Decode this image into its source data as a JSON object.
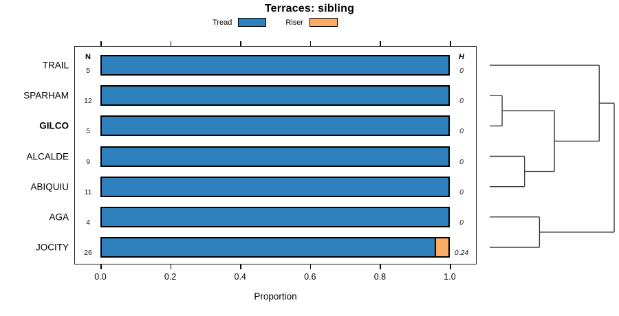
{
  "chart_data": {
    "type": "bar",
    "orientation": "horizontal_stacked",
    "title": "Terraces: sibling",
    "xlabel": "Proportion",
    "xlim": [
      0,
      1
    ],
    "xtick_values": [
      0.0,
      0.2,
      0.4,
      0.6,
      0.8,
      1.0
    ],
    "xtick_labels": [
      "0.0",
      "0.2",
      "0.4",
      "0.6",
      "0.8",
      "1.0"
    ],
    "grid": false,
    "legend_position": "top-center",
    "n_column_header": "N",
    "h_column_header": "H",
    "legend": [
      {
        "label": "Tread",
        "color": "#2E81BC"
      },
      {
        "label": "Riser",
        "color": "#FBAD63"
      }
    ],
    "series_names": [
      "Tread",
      "Riser"
    ],
    "rows": [
      {
        "label": "TRAIL",
        "bold": false,
        "n": "5",
        "h": "0",
        "tread": 1.0,
        "riser": 0.0
      },
      {
        "label": "SPARHAM",
        "bold": false,
        "n": "12",
        "h": "0",
        "tread": 1.0,
        "riser": 0.0
      },
      {
        "label": "GILCO",
        "bold": true,
        "n": "5",
        "h": "0",
        "tread": 1.0,
        "riser": 0.0
      },
      {
        "label": "ALCALDE",
        "bold": false,
        "n": "9",
        "h": "0",
        "tread": 1.0,
        "riser": 0.0
      },
      {
        "label": "ABIQUIU",
        "bold": false,
        "n": "11",
        "h": "0",
        "tread": 1.0,
        "riser": 0.0
      },
      {
        "label": "AGA",
        "bold": false,
        "n": "4",
        "h": "0",
        "tread": 1.0,
        "riser": 0.0
      },
      {
        "label": "JOCITY",
        "bold": false,
        "n": "26",
        "h": "0.24",
        "tread": 0.96,
        "riser": 0.04
      }
    ],
    "dendrogram": {
      "leaf_order": [
        "TRAIL",
        "SPARHAM",
        "GILCO",
        "ALCALDE",
        "ABIQUIU",
        "AGA",
        "JOCITY"
      ],
      "merges": [
        {
          "id": "m1",
          "a": "SPARHAM",
          "b": "GILCO",
          "height": 0.1
        },
        {
          "id": "m2",
          "a": "ALCALDE",
          "b": "ABIQUIU",
          "height": 0.28
        },
        {
          "id": "m3",
          "a": "m1",
          "b": "m2",
          "height": 0.52
        },
        {
          "id": "m4",
          "a": "TRAIL",
          "b": "m3",
          "height": 0.88
        },
        {
          "id": "m5",
          "a": "AGA",
          "b": "JOCITY",
          "height": 0.4
        },
        {
          "id": "root",
          "a": "m4",
          "b": "m5",
          "height": 1.0
        }
      ]
    },
    "colors": {
      "tread": "#2E81BC",
      "riser": "#FBAD63",
      "bar_border": "#000000",
      "dendro_line": "#3C3C3C",
      "background": "#FFFFFF"
    }
  }
}
